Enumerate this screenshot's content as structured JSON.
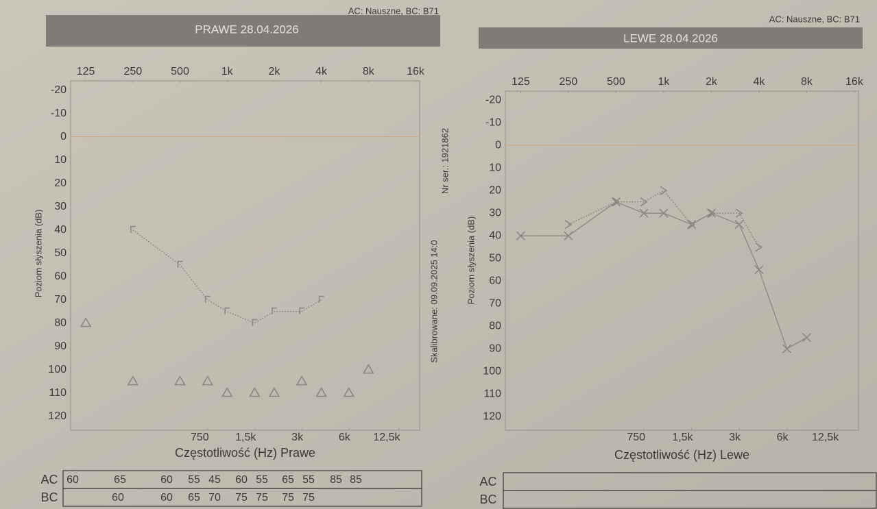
{
  "chart_data": [
    {
      "type": "line",
      "title": "PRAWE 28.04.2026",
      "note": "AC: Nauszne, BC: B71",
      "xlabel": "Częstotliwość (Hz) Prawe",
      "ylabel": "Poziom słyszenia (dB)",
      "xlog": true,
      "xlim": [
        100,
        17000
      ],
      "ylim": [
        -24,
        126
      ],
      "y_inverted": true,
      "xticks": [
        125,
        250,
        500,
        {
          "value": 1000,
          "label": "1k"
        },
        {
          "value": 2000,
          "label": "2k"
        },
        {
          "value": 4000,
          "label": "4k"
        },
        {
          "value": 8000,
          "label": "8k"
        },
        {
          "value": 16000,
          "label": "16k"
        }
      ],
      "xticks_bottom": [
        750,
        {
          "value": 1500,
          "label": "1,5k"
        },
        {
          "value": 3000,
          "label": "3k"
        },
        {
          "value": 6000,
          "label": "6k"
        },
        {
          "value": 12500,
          "label": "12,5k"
        }
      ],
      "yticks": [
        -20,
        -10,
        0,
        10,
        20,
        30,
        40,
        50,
        60,
        70,
        80,
        90,
        100,
        110,
        120
      ],
      "reference_line": 0,
      "series": [
        {
          "marker": "bracket",
          "line": "dotted",
          "color": "#8c8780",
          "x": [
            250,
            500,
            750,
            1000,
            1500,
            2000,
            3000,
            4000
          ],
          "values": [
            40,
            55,
            70,
            75,
            80,
            75,
            75,
            70
          ]
        },
        {
          "marker": "triangle",
          "line": "none",
          "color": "#8c8780",
          "x": [
            125,
            250,
            500,
            750,
            1000,
            1500,
            2000,
            3000,
            4000,
            6000,
            8000
          ],
          "values": [
            80,
            105,
            105,
            105,
            110,
            110,
            110,
            105,
            110,
            110,
            100
          ]
        }
      ]
    },
    {
      "type": "line",
      "title": "LEWE 28.04.2026",
      "note": "AC: Nauszne, BC: B71",
      "xlabel": "Częstotliwość (Hz) Lewe",
      "ylabel": "Poziom słyszenia (dB)",
      "xlog": true,
      "xlim": [
        100,
        17000
      ],
      "ylim": [
        -24,
        126
      ],
      "y_inverted": true,
      "xticks": [
        125,
        250,
        500,
        {
          "value": 1000,
          "label": "1k"
        },
        {
          "value": 2000,
          "label": "2k"
        },
        {
          "value": 4000,
          "label": "4k"
        },
        {
          "value": 8000,
          "label": "8k"
        },
        {
          "value": 16000,
          "label": "16k"
        }
      ],
      "xticks_bottom": [
        750,
        {
          "value": 1500,
          "label": "1,5k"
        },
        {
          "value": 3000,
          "label": "3k"
        },
        {
          "value": 6000,
          "label": "6k"
        },
        {
          "value": 12500,
          "label": "12,5k"
        }
      ],
      "yticks": [
        -20,
        -10,
        0,
        10,
        20,
        30,
        40,
        50,
        60,
        70,
        80,
        90,
        100,
        110,
        120
      ],
      "reference_line": 0,
      "series": [
        {
          "marker": "x",
          "line": "solid",
          "color": "#8c8780",
          "x": [
            125,
            250,
            500,
            750,
            1000,
            1500,
            2000,
            3000,
            4000,
            6000,
            8000
          ],
          "values": [
            40,
            40,
            25,
            30,
            30,
            35,
            30,
            35,
            55,
            90,
            85
          ]
        },
        {
          "marker": "chevron",
          "line": "dotted",
          "color": "#8c8780",
          "x": [
            250,
            500,
            750,
            1000,
            1500,
            2000,
            3000,
            4000
          ],
          "values": [
            35,
            25,
            25,
            20,
            35,
            30,
            30,
            45
          ]
        }
      ]
    }
  ],
  "side_notes": {
    "serial": "Nr ser.: 1921862",
    "calibrated": "Skalibrowane: 09.09.2025 14:0"
  },
  "tables": [
    {
      "rows": [
        {
          "label": "AC",
          "values": [
            60,
            65,
            60,
            55,
            45,
            60,
            55,
            65,
            55,
            85,
            85
          ]
        },
        {
          "label": "BC",
          "values": [
            60,
            60,
            65,
            70,
            75,
            75,
            75,
            75
          ]
        }
      ]
    },
    {
      "rows": [
        {
          "label": "AC",
          "values": []
        },
        {
          "label": "BC",
          "values": []
        }
      ]
    }
  ]
}
